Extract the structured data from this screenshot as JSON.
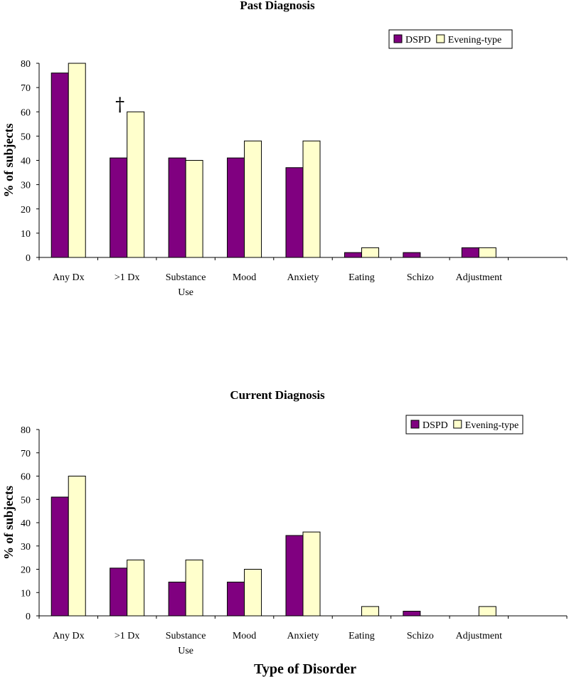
{
  "colors": {
    "DSPD": "#800080",
    "Evening-type": "#ffffcc"
  },
  "x_axis_title": "Type of Disorder",
  "chart_data": [
    {
      "type": "bar",
      "title": "Past Diagnosis",
      "ylabel": "% of subjects",
      "xlabel": "",
      "ylim": [
        0,
        80
      ],
      "yticks": [
        0,
        10,
        20,
        30,
        40,
        50,
        60,
        70,
        80
      ],
      "categories": [
        "Any Dx",
        ">1 Dx",
        "Substance Use",
        "Mood",
        "Anxiety",
        "Eating",
        "Schizo",
        "Adjustment"
      ],
      "category_lines": [
        [
          "Any Dx"
        ],
        [
          ">1 Dx"
        ],
        [
          "Substance",
          "Use"
        ],
        [
          "Mood"
        ],
        [
          "Anxiety"
        ],
        [
          "Eating"
        ],
        [
          "Schizo"
        ],
        [
          "Adjustment"
        ]
      ],
      "series": [
        {
          "name": "DSPD",
          "values": [
            76,
            41,
            41,
            41,
            37,
            2,
            2,
            4
          ]
        },
        {
          "name": "Evening-type",
          "values": [
            80,
            60,
            40,
            48,
            48,
            4,
            0,
            4
          ]
        }
      ],
      "legend_position": "top-right",
      "annotations": [
        {
          "text": "†",
          "category": ">1 Dx"
        }
      ]
    },
    {
      "type": "bar",
      "title": "Current Diagnosis",
      "ylabel": "% of subjects",
      "xlabel": "Type of Disorder",
      "ylim": [
        0,
        80
      ],
      "yticks": [
        0,
        10,
        20,
        30,
        40,
        50,
        60,
        70,
        80
      ],
      "categories": [
        "Any Dx",
        ">1 Dx",
        "Substance Use",
        "Mood",
        "Anxiety",
        "Eating",
        "Schizo",
        "Adjustment"
      ],
      "category_lines": [
        [
          "Any Dx"
        ],
        [
          ">1 Dx"
        ],
        [
          "Substance",
          "Use"
        ],
        [
          "Mood"
        ],
        [
          "Anxiety"
        ],
        [
          "Eating"
        ],
        [
          "Schizo"
        ],
        [
          "Adjustment"
        ]
      ],
      "series": [
        {
          "name": "DSPD",
          "values": [
            51,
            20.5,
            14.5,
            14.5,
            34.5,
            0,
            2,
            0
          ]
        },
        {
          "name": "Evening-type",
          "values": [
            60,
            24,
            24,
            20,
            36,
            4,
            0,
            4
          ]
        }
      ],
      "legend_position": "top-right",
      "annotations": []
    }
  ]
}
